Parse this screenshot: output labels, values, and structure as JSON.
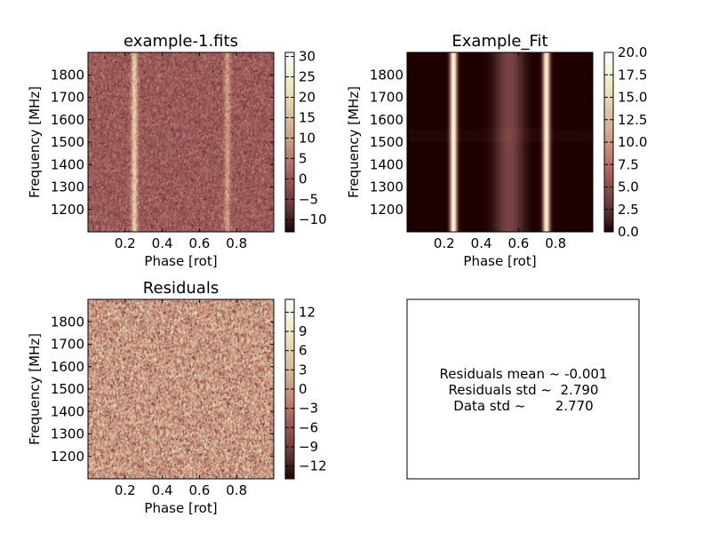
{
  "figure": {
    "background": "#ffffff"
  },
  "chart_data": [
    {
      "type": "heatmap",
      "title": "example-1.fits",
      "xlabel": "Phase [rot]",
      "ylabel": "Frequency [MHz]",
      "xlim": [
        0.0,
        1.0
      ],
      "ylim": [
        1100,
        1900
      ],
      "xticks": [
        0.2,
        0.4,
        0.6,
        0.8
      ],
      "yticks": [
        1200,
        1300,
        1400,
        1500,
        1600,
        1700,
        1800
      ],
      "colorbar": {
        "range": [
          -13,
          31
        ],
        "ticks": [
          30,
          25,
          20,
          15,
          10,
          5,
          0,
          -5,
          -10
        ],
        "tick_labels": [
          "30",
          "25",
          "20",
          "15",
          "10",
          "5",
          "0",
          "−5",
          "−10"
        ]
      },
      "content": "noisy data with two bright vertical pulse components",
      "components": [
        {
          "phase": 0.25,
          "peak": 26
        },
        {
          "phase": 0.75,
          "peak": 22
        }
      ],
      "colormap": "pink"
    },
    {
      "type": "heatmap",
      "title": "Example_Fit",
      "xlabel": "Phase [rot]",
      "ylabel": "Frequency [MHz]",
      "xlim": [
        0.0,
        1.0
      ],
      "ylim": [
        1100,
        1900
      ],
      "xticks": [
        0.2,
        0.4,
        0.6,
        0.8
      ],
      "yticks": [
        1200,
        1300,
        1400,
        1500,
        1600,
        1700,
        1800
      ],
      "colorbar": {
        "range": [
          0,
          20
        ],
        "ticks": [
          20,
          17.5,
          15,
          12.5,
          10,
          7.5,
          5,
          2.5,
          0
        ],
        "tick_labels": [
          "20.0",
          "17.5",
          "15.0",
          "12.5",
          "10.0",
          "7.5",
          "5.0",
          "2.5",
          "0.0"
        ]
      },
      "content": "smooth model: two bright narrow components and a faint broad one",
      "components": [
        {
          "phase": 0.25,
          "peak": 19
        },
        {
          "phase": 0.55,
          "peak": 4
        },
        {
          "phase": 0.75,
          "peak": 18
        }
      ],
      "colormap": "pink"
    },
    {
      "type": "heatmap",
      "title": "Residuals",
      "xlabel": "Phase [rot]",
      "ylabel": "Frequency [MHz]",
      "xlim": [
        0.0,
        1.0
      ],
      "ylim": [
        1100,
        1900
      ],
      "xticks": [
        0.2,
        0.4,
        0.6,
        0.8
      ],
      "yticks": [
        1200,
        1300,
        1400,
        1500,
        1600,
        1700,
        1800
      ],
      "colorbar": {
        "range": [
          -14,
          14
        ],
        "ticks": [
          12,
          9,
          6,
          3,
          0,
          -3,
          -6,
          -9,
          -12
        ],
        "tick_labels": [
          "12",
          "9",
          "6",
          "3",
          "0",
          "−3",
          "−6",
          "−9",
          "−12"
        ]
      },
      "content": "pure noise, no structure",
      "colormap": "pink"
    }
  ],
  "stats": {
    "mean_line": "Residuals mean ~ -0.001",
    "std_line": "Residuals std ~  2.790",
    "data_line": "Data std ~       2.770"
  },
  "colormap_stops": [
    "#1e0000",
    "#4a2727",
    "#6e3d3d",
    "#8c4f4f",
    "#a86060",
    "#bd7d72",
    "#c99a83",
    "#d3b293",
    "#dcc6a2",
    "#e6dcb2",
    "#efebc6",
    "#f7f6e2",
    "#ffffff"
  ]
}
